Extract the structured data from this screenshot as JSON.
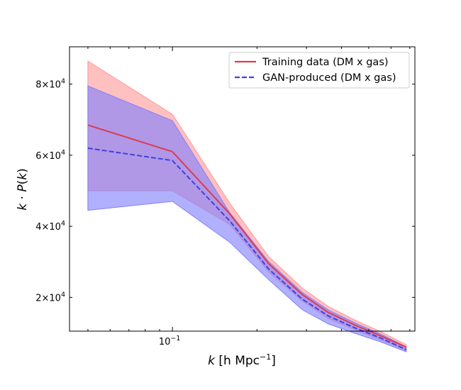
{
  "chart_data": {
    "type": "line",
    "title": "",
    "xlabel": "k [h Mpc$^{-1}$]",
    "xlabel_parts": {
      "var": "k",
      "unit_pre": " [h Mpc",
      "unit_sup": "−1",
      "unit_post": "]"
    },
    "ylabel": "k · P(k)",
    "ylabel_parts": {
      "a": "k",
      "dot": " · ",
      "b": "P",
      "c": "(",
      "d": "k",
      "e": ")"
    },
    "x_scale": "log",
    "xlim": [
      0.043,
      0.73
    ],
    "ylim": [
      10500,
      90500
    ],
    "x": [
      0.05,
      0.1,
      0.16,
      0.22,
      0.29,
      0.36,
      0.45,
      0.55,
      0.68
    ],
    "x_ticks": [
      {
        "value": 0.1,
        "base": "10",
        "exp": "−1"
      }
    ],
    "y_ticks": [
      {
        "value": 20000,
        "mant": "2×10",
        "exp": "4"
      },
      {
        "value": 40000,
        "mant": "4×10",
        "exp": "4"
      },
      {
        "value": 60000,
        "mant": "6×10",
        "exp": "4"
      },
      {
        "value": 80000,
        "mant": "8×10",
        "exp": "4"
      }
    ],
    "series": [
      {
        "name": "Training data (DM x gas)",
        "style": "solid",
        "color": "#dd3b52",
        "band_color": "#ff9a9a",
        "values": [
          68500,
          61000,
          43500,
          29500,
          20800,
          15700,
          12100,
          9200,
          6000
        ],
        "upper": [
          86500,
          71500,
          46500,
          31500,
          22600,
          17400,
          13500,
          10400,
          6700
        ],
        "lower": [
          50000,
          50000,
          40500,
          27200,
          19000,
          14000,
          10800,
          8100,
          5100
        ]
      },
      {
        "name": "GAN-produced (DM x gas)",
        "style": "dashed",
        "color": "#4040e0",
        "band_color": "#8080ff",
        "values": [
          62000,
          58500,
          41500,
          28000,
          19500,
          14700,
          11300,
          8600,
          5300
        ],
        "upper": [
          79500,
          69700,
          43800,
          30100,
          21400,
          16400,
          12700,
          9700,
          6100
        ],
        "lower": [
          44500,
          47000,
          35500,
          25000,
          16500,
          12500,
          9800,
          7500,
          4700
        ]
      }
    ],
    "legend": {
      "position": "top-right"
    }
  }
}
